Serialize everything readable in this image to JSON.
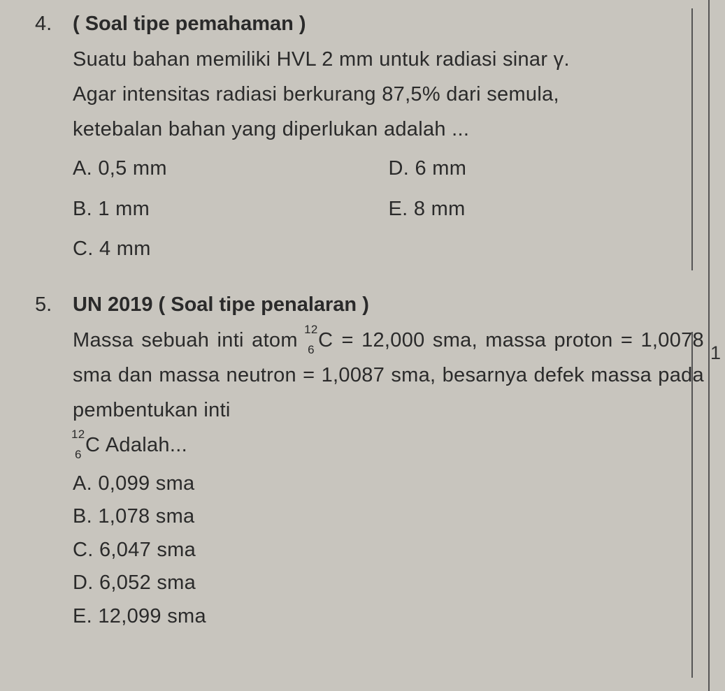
{
  "page": {
    "background_color": "#c8c5be",
    "text_color": "#2a2a2a",
    "font_family": "Arial",
    "body_fontsize": 29,
    "line_height": 1.72
  },
  "q4": {
    "number": "4.",
    "title": "( Soal tipe pemahaman )",
    "body_line1": "Suatu bahan memiliki HVL 2 mm untuk radiasi sinar γ.",
    "body_line2": "Agar intensitas radiasi berkurang 87,5% dari semula,",
    "body_line3": "ketebalan bahan yang diperlukan adalah ...",
    "options": {
      "A": "A.  0,5 mm",
      "B": "B.  1 mm",
      "C": "C.  4 mm",
      "D": "D.  6 mm",
      "E": "E.  8 mm"
    }
  },
  "q5": {
    "number": "5.",
    "title": "UN 2019 ( Soal tipe penalaran )",
    "body_part1": "Massa sebuah inti atom ",
    "nuclide1_mass": "12",
    "nuclide1_atomic": "6",
    "nuclide1_symbol": "C",
    "body_part2": " = 12,000 sma, massa",
    "body_line2": "proton = 1,0078 sma dan massa neutron = 1,0087",
    "body_line3": "sma, besarnya defek massa pada pembentukan inti",
    "nuclide2_mass": "12",
    "nuclide2_atomic": "6",
    "nuclide2_symbol": "C",
    "body_part4": " Adalah...",
    "options": {
      "A": "A. 0,099 sma",
      "B": "B. 1,078 sma",
      "C": "C. 6,047 sma",
      "D": "D. 6,052 sma",
      "E": "E. 12,099 sma"
    }
  },
  "side_marker": "1"
}
